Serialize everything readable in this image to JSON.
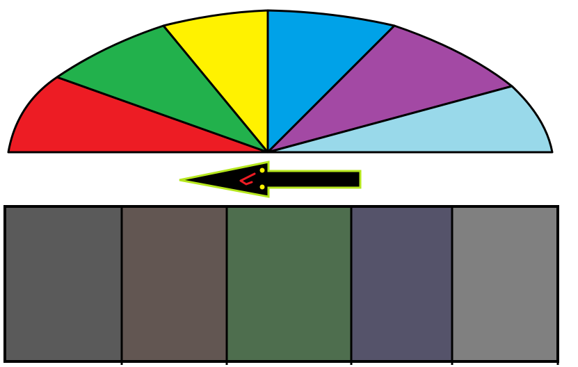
{
  "fan": {
    "wedges": [
      {
        "name": "red-wedge",
        "color": "#ed1c24"
      },
      {
        "name": "green-wedge",
        "color": "#22b14c"
      },
      {
        "name": "yellow-wedge",
        "color": "#fff200"
      },
      {
        "name": "blue-wedge",
        "color": "#00a2e8"
      },
      {
        "name": "purple-wedge",
        "color": "#a349a4"
      },
      {
        "name": "light-blue-wedge",
        "color": "#99d9ea"
      }
    ],
    "outline_color": "#000000"
  },
  "arrow": {
    "direction": "left",
    "icon": "left-arrow-icon",
    "fill_color": "#000000",
    "outline_color": "#b5e61d",
    "mark_color": "#ed1c24",
    "dot_color": "#fff200"
  },
  "swatches": [
    {
      "name": "swatch-dark-gray",
      "color": "#5a5a5a"
    },
    {
      "name": "swatch-brown-gray",
      "color": "#625652"
    },
    {
      "name": "swatch-dark-green",
      "color": "#4e6e4e"
    },
    {
      "name": "swatch-slate-blue",
      "color": "#55536a"
    },
    {
      "name": "swatch-gray",
      "color": "#808080"
    }
  ]
}
